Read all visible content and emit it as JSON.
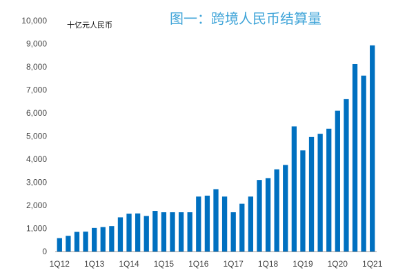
{
  "chart_data": {
    "type": "bar",
    "title": "图一：跨境人民币结算量",
    "unit_label": "十亿元人民币",
    "xlabel": "",
    "ylabel": "",
    "ylim": [
      0,
      10000
    ],
    "y_ticks": [
      0,
      1000,
      2000,
      3000,
      4000,
      5000,
      6000,
      7000,
      8000,
      9000,
      10000
    ],
    "y_tick_labels": [
      "0",
      "1,000",
      "2,000",
      "3,000",
      "4,000",
      "5,000",
      "6,000",
      "7,000",
      "8,000",
      "9,000",
      "10,000"
    ],
    "categories": [
      "1Q12",
      "2Q12",
      "3Q12",
      "4Q12",
      "1Q13",
      "2Q13",
      "3Q13",
      "4Q13",
      "1Q14",
      "2Q14",
      "3Q14",
      "4Q14",
      "1Q15",
      "2Q15",
      "3Q15",
      "4Q15",
      "1Q16",
      "2Q16",
      "3Q16",
      "4Q16",
      "1Q17",
      "2Q17",
      "3Q17",
      "4Q17",
      "1Q18",
      "2Q18",
      "3Q18",
      "4Q18",
      "1Q19",
      "2Q19",
      "3Q19",
      "4Q19",
      "1Q20",
      "2Q20",
      "3Q20",
      "4Q20",
      "1Q21"
    ],
    "x_tick_labels": [
      "1Q12",
      "1Q13",
      "1Q14",
      "1Q15",
      "1Q16",
      "1Q17",
      "1Q18",
      "1Q19",
      "1Q20",
      "1Q21"
    ],
    "values": [
      580,
      680,
      850,
      860,
      1020,
      1060,
      1100,
      1480,
      1640,
      1650,
      1540,
      1760,
      1700,
      1700,
      1700,
      1700,
      2380,
      2420,
      2700,
      2380,
      1700,
      2070,
      2380,
      3100,
      3180,
      3560,
      3750,
      5420,
      4380,
      4960,
      5100,
      5320,
      6100,
      6600,
      8120,
      7620,
      8930
    ],
    "bar_color": "#0070c0",
    "title_color": "#3fa4d8",
    "grid": false,
    "legend": "none"
  }
}
